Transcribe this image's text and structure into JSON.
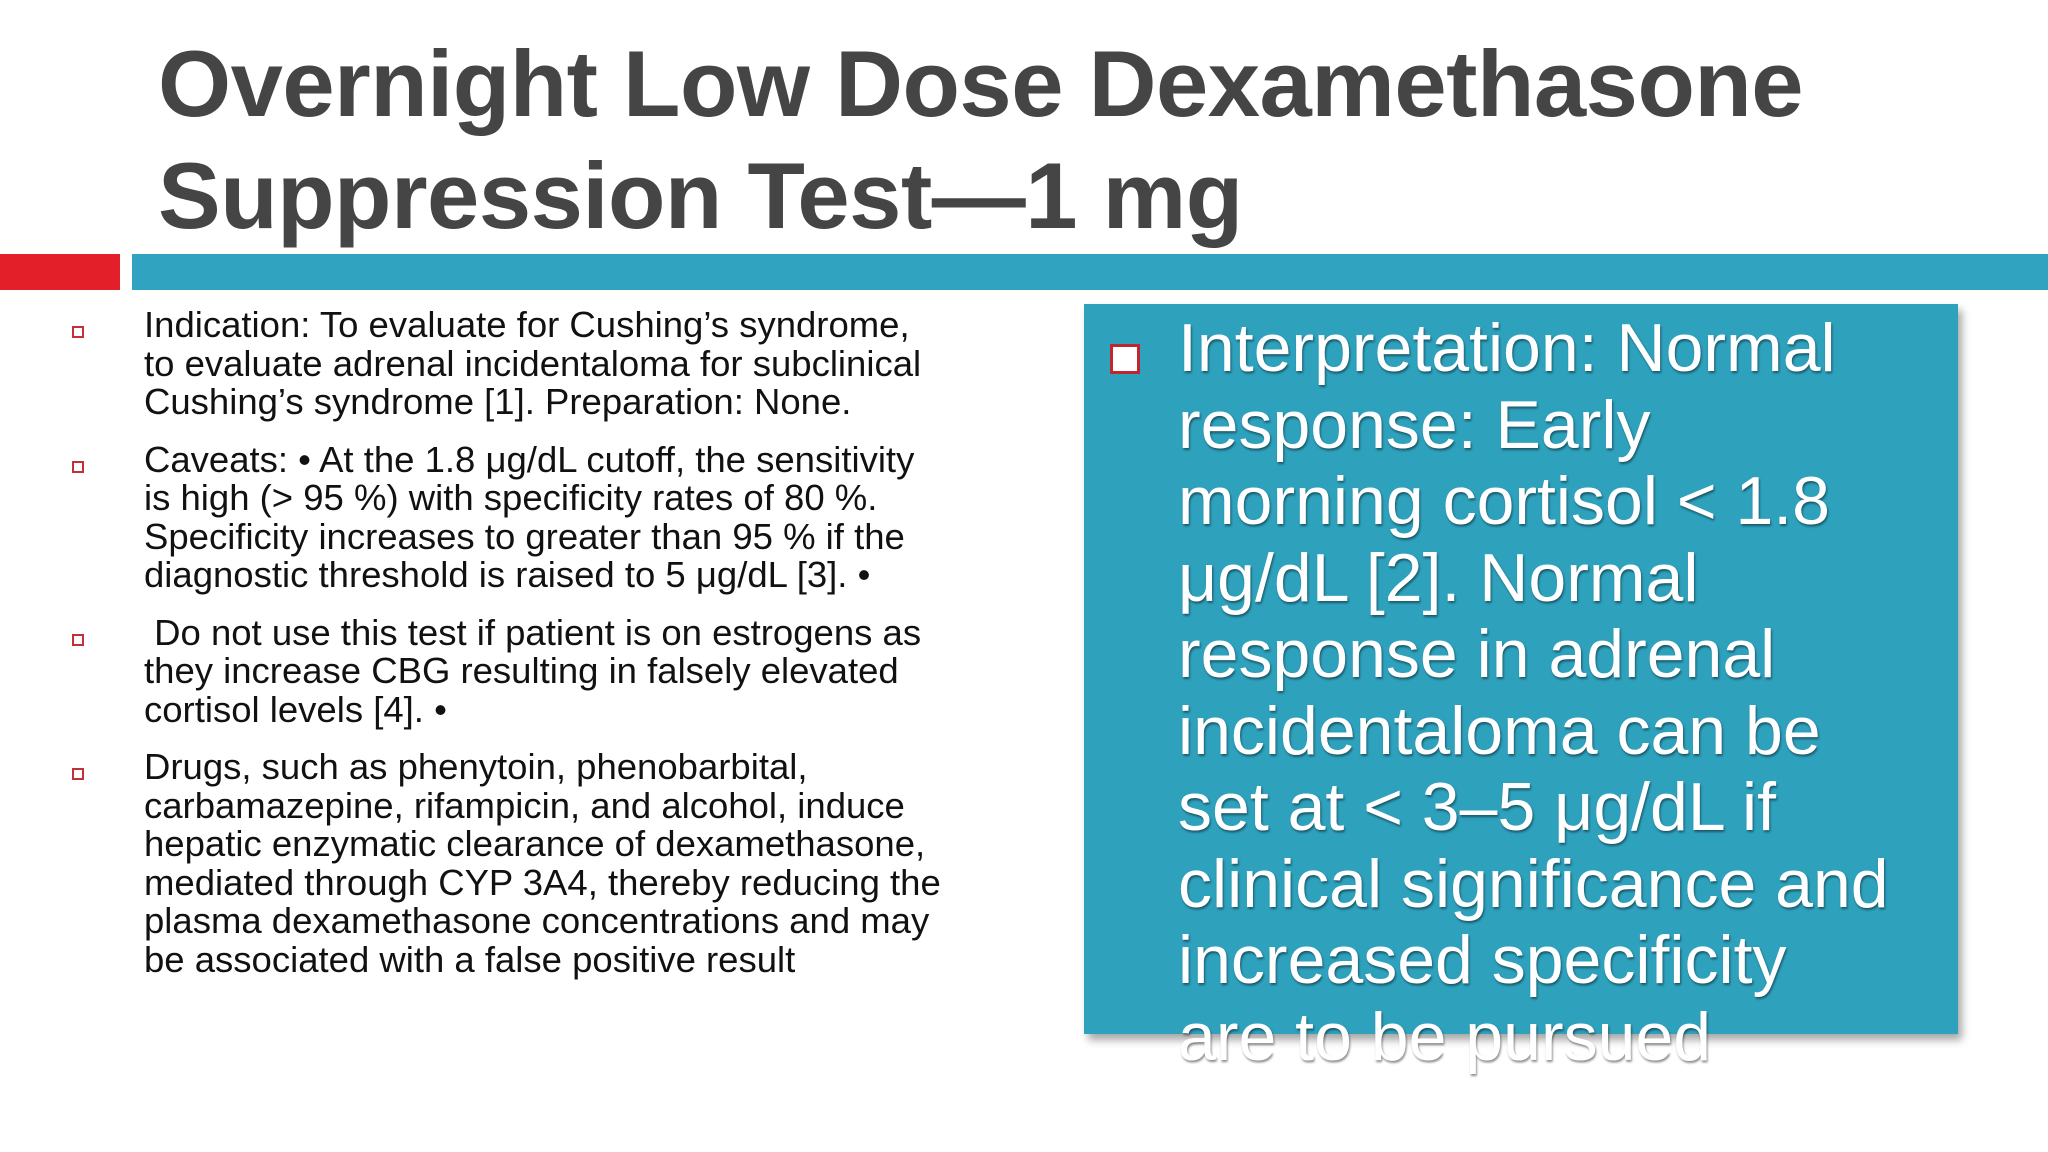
{
  "slide": {
    "title_lines": [
      "Overnight Low Dose Dexamethasone",
      "Suppression Test—1 mg"
    ],
    "bullets": [
      {
        "lines": [
          "Indication:  To evaluate for Cushing’s syndrome,",
          "to evaluate adrenal incidentaloma for subclinical",
          "Cushing’s syndrome [1]. Preparation: None."
        ]
      },
      {
        "lines": [
          "Caveats: • At the 1.8 μg/dL cutoff, the sensitivity",
          "is high (> 95 %) with specificity rates of 80 %.",
          "Specificity increases to greater than 95 % if the",
          "diagnostic threshold is raised to 5 μg/dL [3]. •"
        ]
      },
      {
        "lines": [
          " Do not use this test if patient is on estrogens as",
          "they increase CBG resulting in falsely elevated",
          "cortisol levels [4]. •"
        ]
      },
      {
        "lines": [
          "Drugs, such as phenytoin, phenobarbital,",
          "carbamazepine, rifampicin, and alcohol, induce",
          "hepatic enzymatic clearance of dexamethasone,",
          "mediated through CYP 3A4, thereby reducing the",
          "plasma dexamethasone concentrations and may",
          "be associated with a false positive result"
        ]
      }
    ],
    "interpretation_lines": [
      "Interpretation:  Normal",
      "response: Early",
      "morning cortisol < 1.8",
      "μg/dL [2].  Normal",
      "response in adrenal",
      "incidentaloma can be",
      "set at < 3–5 μg/dL if",
      "clinical significance and",
      "increased specificity",
      "are to be pursued"
    ]
  },
  "colors": {
    "title": "#454545",
    "accent_red": "#e3202a",
    "accent_teal": "#2fa3bf",
    "box_bg": "#2ea1bd",
    "bullet_mark": "#c23038"
  },
  "icons": {
    "bullet": "hollow-square-bullet-icon"
  }
}
